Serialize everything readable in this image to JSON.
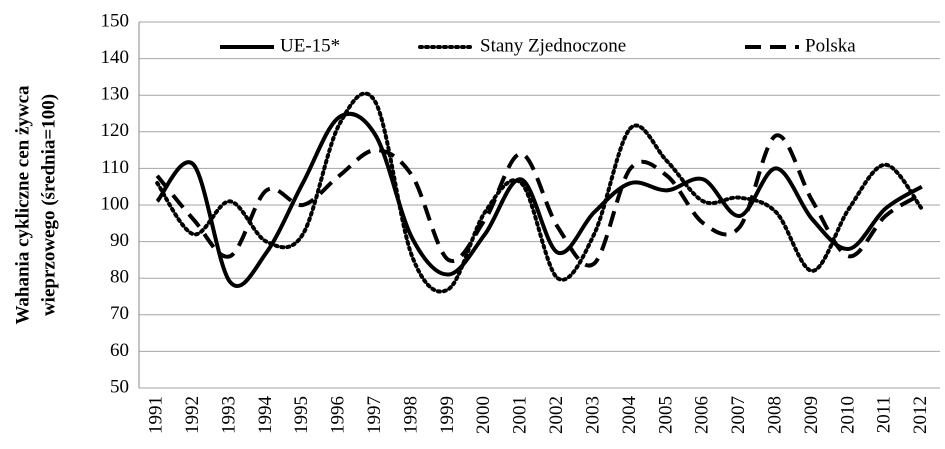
{
  "chart_data": {
    "type": "line",
    "y_label": [
      "Wahania cykliczne cen żywca",
      "wieprzowego  (średnia=100)"
    ],
    "categories": [
      "1991",
      "1992",
      "1993",
      "1994",
      "1995",
      "1996",
      "1997",
      "1998",
      "1999",
      "2000",
      "2001",
      "2002",
      "2003",
      "2004",
      "2005",
      "2006",
      "2007",
      "2008",
      "2009",
      "2010",
      "2011",
      "2012"
    ],
    "series": [
      {
        "name": "UE-15*",
        "color": "#000000",
        "style": "solid",
        "values": [
          101,
          111,
          79,
          87,
          106,
          124,
          119,
          91,
          81,
          92,
          107,
          87,
          98,
          106,
          104,
          107,
          97,
          110,
          96,
          88,
          99,
          105
        ]
      },
      {
        "name": "Stany Zjednoczone",
        "color": "#000000",
        "style": "dotted",
        "values": [
          106,
          92,
          101,
          90,
          92,
          122,
          128,
          86,
          77,
          98,
          106,
          80,
          92,
          121,
          112,
          101,
          102,
          98,
          82,
          99,
          111,
          99
        ]
      },
      {
        "name": "Polska",
        "color": "#000000",
        "style": "dashed",
        "values": [
          108,
          96,
          86,
          104,
          100,
          108,
          115,
          108,
          85,
          96,
          114,
          94,
          84,
          110,
          108,
          95,
          94,
          119,
          101,
          86,
          97,
          103
        ]
      }
    ],
    "ylim": [
      50,
      150
    ],
    "yticks": [
      50,
      60,
      70,
      80,
      90,
      100,
      110,
      120,
      130,
      140,
      150
    ],
    "grid": true,
    "legend": "top"
  }
}
